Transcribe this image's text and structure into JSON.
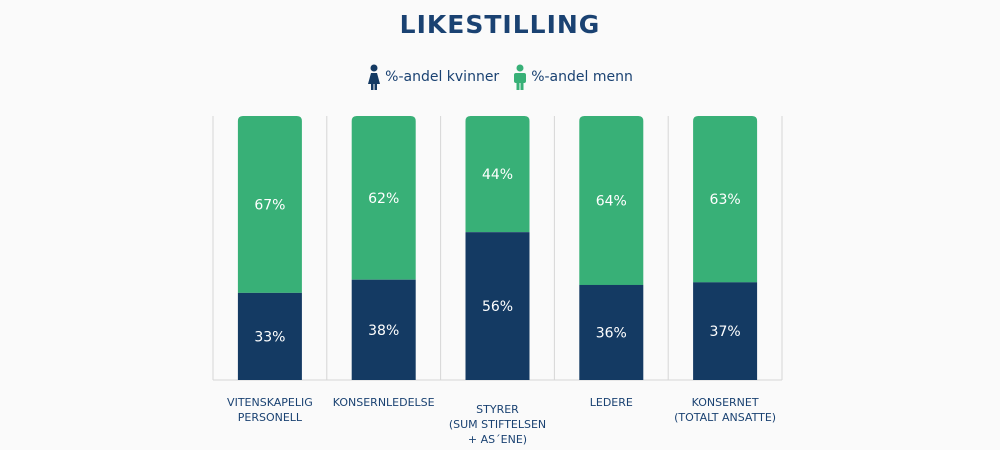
{
  "chart_data": {
    "type": "bar",
    "stacked": true,
    "title": "LIKESTILLING",
    "categories": [
      "VITENSKAPELIG\nPERSONELL",
      "KONSERNLEDELSE",
      "STYRER\n(SUM STIFTELSEN\n+ AS´ENE)",
      "LEDERE",
      "KONSERNET\n(TOTALT ANSATTE)"
    ],
    "series": [
      {
        "name": "%-andel kvinner",
        "values": [
          33,
          38,
          56,
          36,
          37
        ],
        "labels": [
          "33%",
          "38%",
          "56%",
          "36%",
          "37%"
        ],
        "color": "#143a63",
        "icon": "female-icon"
      },
      {
        "name": "%-andel menn",
        "values": [
          67,
          62,
          44,
          64,
          63
        ],
        "labels": [
          "67%",
          "62%",
          "44%",
          "64%",
          "63%"
        ],
        "color": "#38b077",
        "icon": "male-icon"
      }
    ],
    "ylim": [
      0,
      100
    ],
    "grid": false,
    "legend": "top-center"
  }
}
